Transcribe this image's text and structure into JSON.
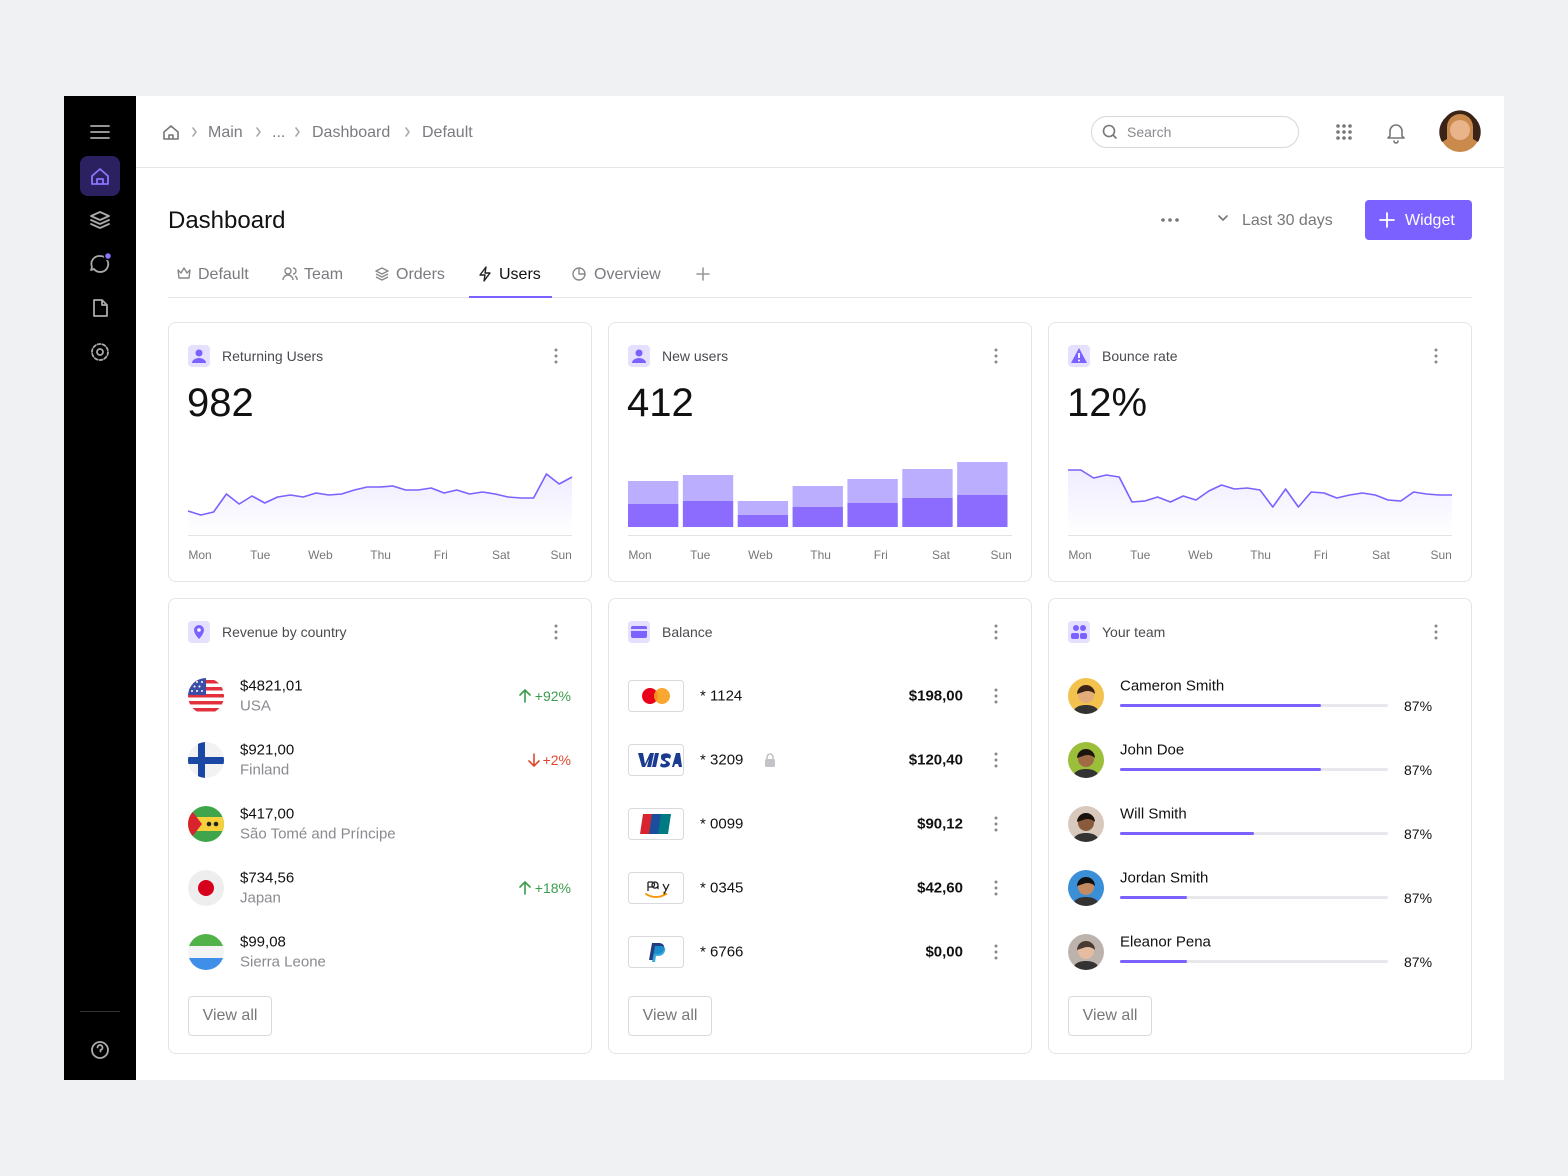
{
  "breadcrumb": [
    "Main",
    "...",
    "Dashboard",
    "Default"
  ],
  "search_placeholder": "Search",
  "page_title": "Dashboard",
  "date_range": "Last 30 days",
  "add_button": "Widget",
  "tabs": [
    "Default",
    "Team",
    "Orders",
    "Users",
    "Overview"
  ],
  "active_tab": 3,
  "stat_cards": [
    {
      "title": "Returning Users",
      "value": "982",
      "type": "line",
      "days": [
        "Mon",
        "Tue",
        "Web",
        "Thu",
        "Fri",
        "Sat",
        "Sun"
      ],
      "values": [
        24,
        20,
        23,
        41,
        31,
        39,
        32,
        38,
        40,
        38,
        42,
        40,
        41,
        45,
        48,
        48,
        49,
        45,
        45,
        47,
        42,
        45,
        41,
        43,
        41,
        38,
        37,
        37,
        61,
        51,
        58
      ]
    },
    {
      "title": "New users",
      "value": "412",
      "type": "bar",
      "days": [
        "Mon",
        "Tue",
        "Web",
        "Thu",
        "Fri",
        "Sat",
        "Sun"
      ],
      "values": [
        23,
        26,
        12,
        20,
        24,
        29,
        32
      ],
      "values_upper": [
        23,
        26,
        14,
        21,
        24,
        29,
        33
      ]
    },
    {
      "title": "Bounce rate",
      "value": "12%",
      "type": "line",
      "days": [
        "Mon",
        "Tue",
        "Web",
        "Thu",
        "Fri",
        "Sat",
        "Sun"
      ],
      "values": [
        65,
        65,
        57,
        60,
        58,
        33,
        34,
        38,
        33,
        39,
        35,
        44,
        50,
        46,
        47,
        45,
        28,
        46,
        28,
        43,
        42,
        37,
        40,
        42,
        40,
        35,
        34,
        43,
        41,
        40,
        40
      ]
    }
  ],
  "revenue": {
    "title": "Revenue by country",
    "button": "View all",
    "rows": [
      {
        "amount": "$4821,01",
        "country": "USA",
        "change": "+92%",
        "trend": "up"
      },
      {
        "amount": "$921,00",
        "country": "Finland",
        "change": "+2%",
        "trend": "down"
      },
      {
        "amount": "$417,00",
        "country": "São Tomé and Príncipe"
      },
      {
        "amount": "$734,56",
        "country": "Japan",
        "change": "+18%",
        "trend": "up"
      },
      {
        "amount": "$99,08",
        "country": "Sierra Leone"
      }
    ]
  },
  "balance": {
    "title": "Balance",
    "button": "View all",
    "rows": [
      {
        "card": "* 1124",
        "amount": "$198,00"
      },
      {
        "card": "* 3209",
        "amount": "$120,40"
      },
      {
        "card": "* 0099",
        "amount": "$90,12"
      },
      {
        "card": "* 0345",
        "amount": "$42,60"
      },
      {
        "card": "* 6766",
        "amount": "$0,00"
      }
    ]
  },
  "team": {
    "title": "Your team",
    "button": "View all",
    "members": [
      {
        "name": "Cameron Smith",
        "percent": "87%",
        "progress": 75
      },
      {
        "name": "John Doe",
        "percent": "87%",
        "progress": 75
      },
      {
        "name": "Will Smith",
        "percent": "87%",
        "progress": 50
      },
      {
        "name": "Jordan Smith",
        "percent": "87%",
        "progress": 25
      },
      {
        "name": "Eleanor Pena",
        "percent": "87%",
        "progress": 25
      }
    ]
  }
}
